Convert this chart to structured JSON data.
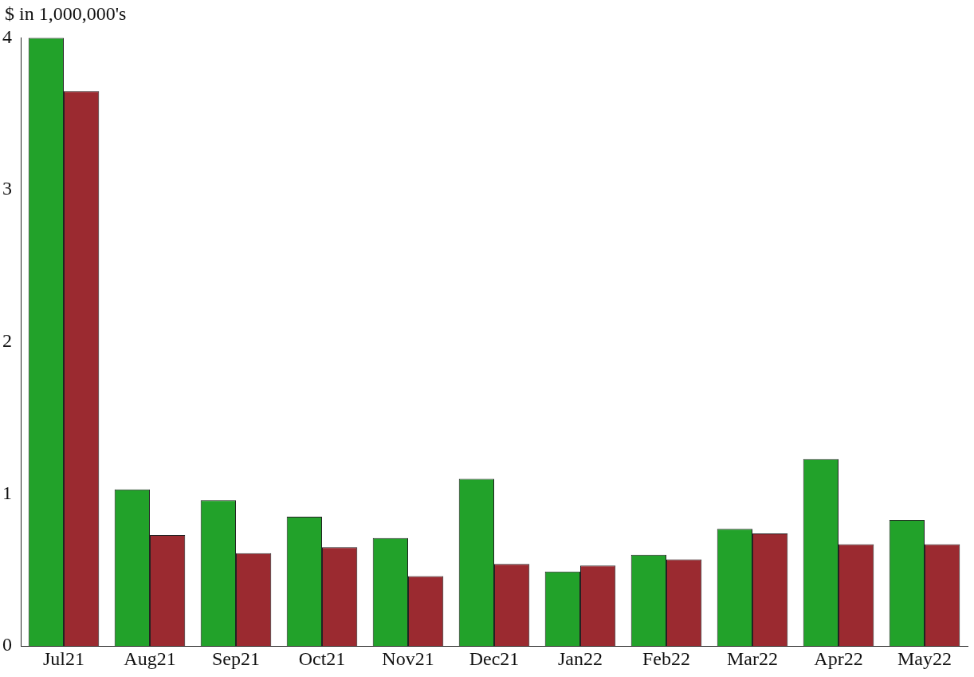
{
  "chart_data": {
    "type": "bar",
    "ylabel": "$ in 1,000,000's",
    "categories": [
      "Jul21",
      "Aug21",
      "Sep21",
      "Oct21",
      "Nov21",
      "Dec21",
      "Jan22",
      "Feb22",
      "Mar22",
      "Apr22",
      "May22"
    ],
    "series": [
      {
        "color": "#22a22a",
        "values": [
          4.0,
          1.03,
          0.96,
          0.85,
          0.71,
          1.1,
          0.49,
          0.6,
          0.77,
          1.23,
          0.83
        ]
      },
      {
        "color": "#9b2a30",
        "values": [
          3.65,
          0.73,
          0.61,
          0.65,
          0.46,
          0.54,
          0.53,
          0.57,
          0.74,
          0.67,
          0.67
        ]
      }
    ],
    "ylim": [
      0,
      4
    ],
    "yticks": [
      0,
      1,
      2,
      3,
      4
    ],
    "grid": false,
    "legend": false
  }
}
